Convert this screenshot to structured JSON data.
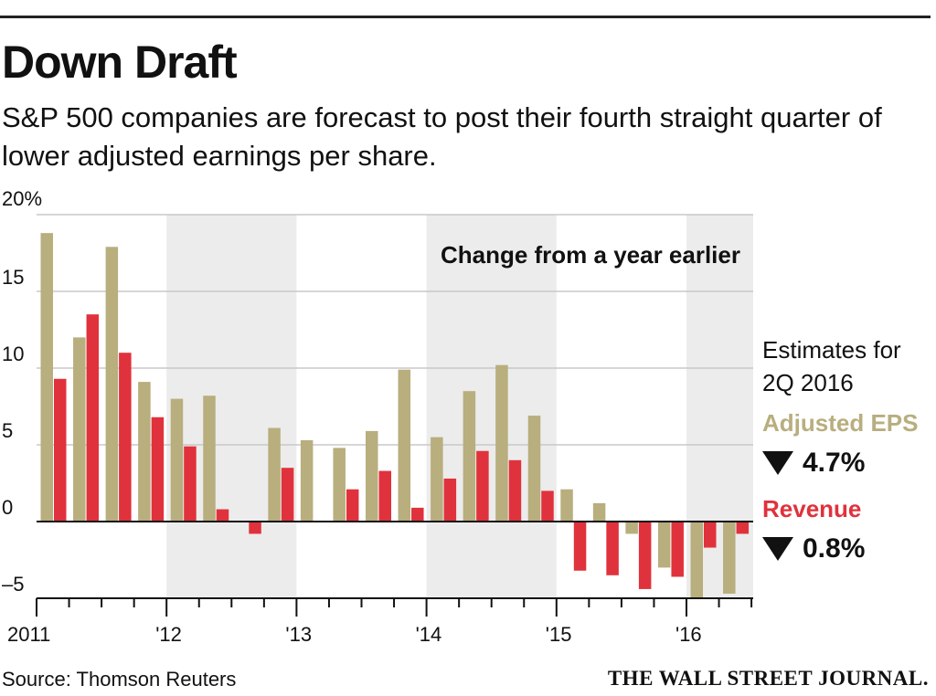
{
  "title": "Down Draft",
  "subtitle": "S&P 500 companies are forecast to post their fourth straight quarter of lower adjusted earnings per share.",
  "source": "Source: Thomson Reuters",
  "publisher": "THE WALL STREET JOURNAL.",
  "side_panel": {
    "heading_line1": "Estimates for",
    "heading_line2": "2Q 2016",
    "eps_label": "Adjusted EPS",
    "eps_value": "4.7%",
    "revenue_label": "Revenue",
    "revenue_value": "0.8%"
  },
  "colors": {
    "eps": "#b8ae7e",
    "revenue": "#e0323c",
    "shade": "#ececec",
    "grid": "#c8c8c8"
  },
  "chart_data": {
    "type": "bar",
    "annotation": "Change from a year earlier",
    "y_tick_labels": [
      "20%",
      "15",
      "10",
      "5",
      "0",
      "–5"
    ],
    "y_ticks": [
      20,
      15,
      10,
      5,
      0,
      -5
    ],
    "ylim": [
      -5,
      20
    ],
    "x_tick_labels": [
      "2011",
      "'12",
      "'13",
      "'14",
      "'15",
      "'16"
    ],
    "shaded_years": [
      "'12",
      "'14",
      "'16"
    ],
    "grid": true,
    "categories": [
      "1Q 2011",
      "2Q 2011",
      "3Q 2011",
      "4Q 2011",
      "1Q 2012",
      "2Q 2012",
      "3Q 2012",
      "4Q 2012",
      "1Q 2013",
      "2Q 2013",
      "3Q 2013",
      "4Q 2013",
      "1Q 2014",
      "2Q 2014",
      "3Q 2014",
      "4Q 2014",
      "1Q 2015",
      "2Q 2015",
      "3Q 2015",
      "4Q 2015",
      "1Q 2016",
      "2Q 2016"
    ],
    "series": [
      {
        "name": "Adjusted EPS",
        "values": [
          18.8,
          12.0,
          17.9,
          9.1,
          8.0,
          8.2,
          0.0,
          6.1,
          5.3,
          4.8,
          5.9,
          9.9,
          5.5,
          8.5,
          10.2,
          6.9,
          2.1,
          1.2,
          -0.8,
          -3.0,
          -5.0,
          -4.7
        ]
      },
      {
        "name": "Revenue",
        "values": [
          9.3,
          13.5,
          11.0,
          6.8,
          4.9,
          0.8,
          -0.8,
          3.5,
          0.0,
          2.1,
          3.3,
          0.9,
          2.8,
          4.6,
          4.0,
          2.0,
          -3.2,
          -3.5,
          -4.4,
          -3.6,
          -1.7,
          -0.8
        ]
      }
    ]
  }
}
